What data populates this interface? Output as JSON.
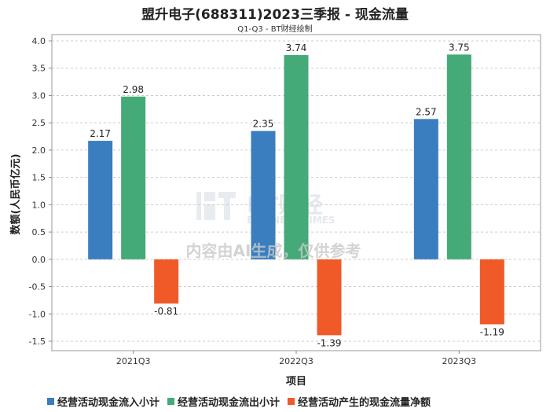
{
  "chart_data": {
    "type": "bar",
    "title": "盟升电子(688311)2023三季报 - 现金流量",
    "subtitle": "Q1-Q3 - BT财经绘制",
    "xlabel": "项目",
    "ylabel": "数额(人民币亿元)",
    "categories": [
      "2021Q3",
      "2022Q3",
      "2023Q3"
    ],
    "ylim": [
      -1.5,
      4.0
    ],
    "yticks": [
      4.0,
      3.5,
      3.0,
      2.5,
      2.0,
      1.5,
      1.0,
      0.5,
      0.0,
      -0.5,
      -1.0,
      -1.5
    ],
    "ytick_labels": [
      "4.0",
      "3.5",
      "3.0",
      "2.5",
      "2.0",
      "1.5",
      "1.0",
      "0.5",
      "0.0",
      "-0.5",
      "-1.0",
      "-1.5"
    ],
    "grid": true,
    "legend_position": "bottom",
    "series": [
      {
        "name": "经营活动现金流入小计",
        "color": "#3a7ebf",
        "values": [
          2.17,
          2.35,
          2.57
        ],
        "labels": [
          "2.17",
          "2.35",
          "2.57"
        ]
      },
      {
        "name": "经营活动现金流出小计",
        "color": "#44aa77",
        "values": [
          2.98,
          3.74,
          3.75
        ],
        "labels": [
          "2.98",
          "3.74",
          "3.75"
        ]
      },
      {
        "name": "经营活动产生的现金流量净额",
        "color": "#f05a28",
        "values": [
          -0.81,
          -1.39,
          -1.19
        ],
        "labels": [
          "-0.81",
          "-1.39",
          "-1.19"
        ]
      }
    ]
  },
  "watermark": {
    "brand": "BT财经",
    "brand_sub": "BUSINESS TIMES",
    "notice": "内容由AI生成，仅供参考"
  }
}
